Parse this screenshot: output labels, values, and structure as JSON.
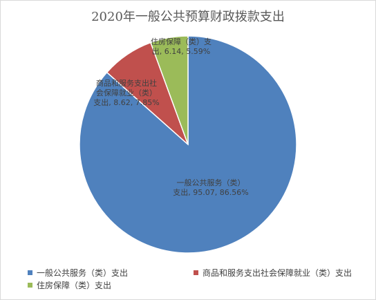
{
  "chart_data": {
    "type": "pie",
    "title": "2020年一般公共预算财政拨款支出",
    "slices": [
      {
        "name": "一般公共服务（类）支出",
        "label_lines": [
          "一般公共服务（类）",
          "支出, 95.07, 86.56%"
        ],
        "value": 95.07,
        "percent": "86.56%",
        "color": "#4f81bd"
      },
      {
        "name": "商品和服务支出社会保障就业（类）支出",
        "label_lines": [
          "商品和服务支出社",
          "会保障就业（类）",
          "支出, 8.62, 7.85%"
        ],
        "value": 8.62,
        "percent": "7.85%",
        "color": "#c0504d"
      },
      {
        "name": "住房保障（类）支出",
        "label_lines": [
          "住房保障（类）支",
          "出, 6.14, 5.59%"
        ],
        "value": 6.14,
        "percent": "5.59%",
        "color": "#9bbb59"
      }
    ],
    "legend": [
      "一般公共服务（类）支出",
      "商品和服务支出社会保障就业（类）支出",
      "住房保障（类）支出"
    ],
    "legend_position": "bottom"
  }
}
